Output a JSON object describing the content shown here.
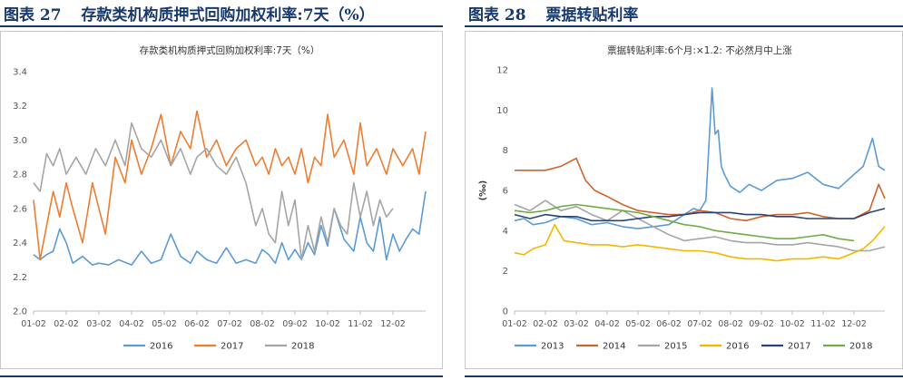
{
  "figures": [
    {
      "label": "图表 27",
      "caption": "存款类机构质押式回购加权利率:7天（%）"
    },
    {
      "label": "图表 28",
      "caption": "票据转贴利率"
    }
  ],
  "chart_data": [
    {
      "type": "line",
      "title": "存款类机构质押式回购加权利率:7天（%）",
      "xlabel": "",
      "ylabel": "",
      "ylim": [
        2.0,
        3.4
      ],
      "yticks": [
        "2.0",
        "2.2",
        "2.4",
        "2.6",
        "2.8",
        "3.0",
        "3.2",
        "3.4"
      ],
      "x_ticks": [
        "01-02",
        "02-02",
        "03-02",
        "04-02",
        "05-02",
        "06-02",
        "07-02",
        "08-02",
        "09-02",
        "10-02",
        "11-02",
        "12-02"
      ],
      "xlim": [
        0,
        12
      ],
      "grid": false,
      "legend": "bottom",
      "series": [
        {
          "name": "2016",
          "color": "#5b9bd5",
          "x": [
            0,
            0.2,
            0.4,
            0.6,
            0.8,
            1,
            1.2,
            1.5,
            1.8,
            2,
            2.3,
            2.6,
            3,
            3.3,
            3.6,
            3.9,
            4.2,
            4.5,
            4.8,
            5,
            5.3,
            5.6,
            5.9,
            6.2,
            6.5,
            6.8,
            7,
            7.2,
            7.4,
            7.6,
            7.8,
            8,
            8.2,
            8.4,
            8.6,
            8.8,
            9,
            9.2,
            9.5,
            9.8,
            10,
            10.2,
            10.4,
            10.6,
            10.8,
            11,
            11.2,
            11.4,
            11.6,
            11.8,
            12
          ],
          "y": [
            2.33,
            2.3,
            2.33,
            2.35,
            2.48,
            2.4,
            2.28,
            2.32,
            2.27,
            2.28,
            2.27,
            2.3,
            2.27,
            2.35,
            2.28,
            2.3,
            2.45,
            2.32,
            2.28,
            2.35,
            2.3,
            2.28,
            2.37,
            2.28,
            2.3,
            2.28,
            2.36,
            2.33,
            2.28,
            2.4,
            2.3,
            2.36,
            2.3,
            2.4,
            2.33,
            2.5,
            2.38,
            2.6,
            2.42,
            2.35,
            2.55,
            2.4,
            2.35,
            2.55,
            2.3,
            2.45,
            2.35,
            2.42,
            2.48,
            2.45,
            2.7
          ]
        },
        {
          "name": "2017",
          "color": "#ed7d31",
          "x": [
            0,
            0.2,
            0.4,
            0.6,
            0.8,
            1,
            1.2,
            1.5,
            1.8,
            2,
            2.2,
            2.5,
            2.8,
            3,
            3.3,
            3.6,
            3.9,
            4.2,
            4.5,
            4.8,
            5,
            5.3,
            5.6,
            5.9,
            6.2,
            6.5,
            6.8,
            7,
            7.2,
            7.4,
            7.6,
            7.8,
            8,
            8.2,
            8.4,
            8.6,
            8.8,
            9,
            9.2,
            9.5,
            9.8,
            10,
            10.2,
            10.5,
            10.8,
            11,
            11.3,
            11.6,
            11.8,
            12
          ],
          "y": [
            2.65,
            2.3,
            2.5,
            2.7,
            2.55,
            2.75,
            2.6,
            2.4,
            2.75,
            2.6,
            2.45,
            2.9,
            2.75,
            3.0,
            2.8,
            2.95,
            3.15,
            2.85,
            3.05,
            2.95,
            3.17,
            2.9,
            3.0,
            2.85,
            2.95,
            3.0,
            2.85,
            2.9,
            2.8,
            2.95,
            2.85,
            2.9,
            2.8,
            2.95,
            2.75,
            2.9,
            2.85,
            3.15,
            2.9,
            3.0,
            2.8,
            3.1,
            2.85,
            2.95,
            2.8,
            2.95,
            2.85,
            2.95,
            2.8,
            3.05
          ]
        },
        {
          "name": "2018",
          "color": "#a5a5a5",
          "x": [
            0,
            0.2,
            0.4,
            0.6,
            0.8,
            1,
            1.3,
            1.6,
            1.9,
            2.2,
            2.5,
            2.8,
            3,
            3.3,
            3.6,
            3.9,
            4.2,
            4.5,
            4.8,
            5,
            5.3,
            5.6,
            5.9,
            6.2,
            6.5,
            6.8,
            7,
            7.2,
            7.4,
            7.6,
            7.8,
            8,
            8.2,
            8.4,
            8.6,
            8.8,
            9,
            9.2,
            9.4,
            9.6,
            9.8,
            10,
            10.2,
            10.4,
            10.6,
            10.8,
            11
          ],
          "y": [
            2.75,
            2.7,
            2.92,
            2.85,
            2.95,
            2.8,
            2.9,
            2.8,
            2.95,
            2.85,
            3.0,
            2.85,
            3.1,
            2.95,
            2.9,
            3.0,
            2.85,
            2.95,
            2.8,
            2.9,
            2.95,
            2.85,
            2.8,
            2.9,
            2.75,
            2.5,
            2.6,
            2.45,
            2.4,
            2.7,
            2.5,
            2.65,
            2.3,
            2.5,
            2.35,
            2.55,
            2.4,
            2.6,
            2.5,
            2.45,
            2.75,
            2.55,
            2.7,
            2.5,
            2.65,
            2.55,
            2.6
          ]
        }
      ]
    },
    {
      "type": "line",
      "title": "票据转贴利率:6个月:×1.2: 不必然月中上涨",
      "xlabel": "",
      "ylabel": "(‰)",
      "ylim": [
        0,
        12
      ],
      "yticks": [
        "0",
        "2",
        "4",
        "6",
        "8",
        "10",
        "12"
      ],
      "x_ticks": [
        "01-02",
        "02-02",
        "03-02",
        "04-02",
        "05-02",
        "06-02",
        "07-02",
        "08-02",
        "09-02",
        "10-02",
        "11-02",
        "12-02"
      ],
      "xlim": [
        0,
        12
      ],
      "grid": false,
      "legend": "bottom",
      "series": [
        {
          "name": "2013",
          "color": "#5b9bd5",
          "x": [
            0,
            0.3,
            0.6,
            1,
            1.5,
            2,
            2.5,
            3,
            3.5,
            4,
            4.5,
            5,
            5.5,
            5.8,
            6,
            6.2,
            6.4,
            6.5,
            6.6,
            6.7,
            6.8,
            7,
            7.3,
            7.6,
            8,
            8.5,
            9,
            9.5,
            10,
            10.5,
            11,
            11.3,
            11.6,
            11.8,
            12
          ],
          "y": [
            4.5,
            4.6,
            4.3,
            4.4,
            4.7,
            4.6,
            4.3,
            4.4,
            4.2,
            4.1,
            4.2,
            4.3,
            4.8,
            5.1,
            5.0,
            5.5,
            11.1,
            8.8,
            9.0,
            7.2,
            6.8,
            6.2,
            5.9,
            6.3,
            6.0,
            6.5,
            6.6,
            6.9,
            6.3,
            6.1,
            6.8,
            7.2,
            8.6,
            7.2,
            7.0
          ]
        },
        {
          "name": "2014",
          "color": "#d0632b",
          "x": [
            0,
            0.5,
            1,
            1.5,
            2,
            2.3,
            2.6,
            3,
            3.5,
            4,
            4.5,
            5,
            5.5,
            6,
            6.5,
            7,
            7.5,
            8,
            8.5,
            9,
            9.5,
            10,
            10.5,
            11,
            11.5,
            11.8,
            12
          ],
          "y": [
            7.0,
            7.0,
            7.0,
            7.2,
            7.6,
            6.5,
            6.0,
            5.7,
            5.3,
            5.0,
            4.9,
            4.8,
            4.8,
            5.0,
            4.9,
            4.6,
            4.5,
            4.7,
            4.8,
            4.8,
            4.9,
            4.7,
            4.6,
            4.6,
            5.0,
            6.3,
            5.6
          ]
        },
        {
          "name": "2015",
          "color": "#a5a5a5",
          "x": [
            0,
            0.5,
            1,
            1.5,
            2,
            2.5,
            3,
            3.5,
            4,
            4.5,
            5,
            5.5,
            6,
            6.5,
            7,
            7.5,
            8,
            8.5,
            9,
            9.5,
            10,
            10.5,
            11,
            11.5,
            12
          ],
          "y": [
            5.3,
            5.0,
            5.5,
            5.0,
            5.2,
            4.8,
            4.5,
            5.0,
            4.6,
            4.2,
            3.8,
            3.5,
            3.6,
            3.7,
            3.5,
            3.4,
            3.4,
            3.3,
            3.3,
            3.4,
            3.3,
            3.2,
            3.0,
            3.0,
            3.2
          ]
        },
        {
          "name": "2016",
          "color": "#f2b800",
          "x": [
            0,
            0.3,
            0.6,
            1,
            1.3,
            1.6,
            2,
            2.5,
            3,
            3.5,
            4,
            4.5,
            5,
            5.5,
            6,
            6.5,
            7,
            7.5,
            8,
            8.5,
            9,
            9.5,
            10,
            10.5,
            11,
            11.3,
            11.6,
            12
          ],
          "y": [
            2.9,
            2.8,
            3.1,
            3.3,
            4.3,
            3.5,
            3.4,
            3.3,
            3.3,
            3.2,
            3.3,
            3.2,
            3.1,
            3.0,
            3.0,
            2.9,
            2.7,
            2.6,
            2.6,
            2.5,
            2.6,
            2.6,
            2.7,
            2.6,
            2.9,
            3.1,
            3.5,
            4.2
          ]
        },
        {
          "name": "2017",
          "color": "#264478",
          "x": [
            0,
            0.5,
            1,
            1.5,
            2,
            2.5,
            3,
            3.5,
            4,
            4.5,
            5,
            5.5,
            6,
            6.5,
            7,
            7.5,
            8,
            8.5,
            9,
            9.5,
            10,
            10.5,
            11,
            11.5,
            12
          ],
          "y": [
            4.8,
            4.6,
            4.8,
            4.7,
            4.7,
            4.5,
            4.5,
            4.5,
            4.6,
            4.7,
            4.7,
            4.8,
            4.9,
            4.9,
            4.9,
            4.8,
            4.8,
            4.7,
            4.7,
            4.6,
            4.6,
            4.6,
            4.6,
            4.9,
            5.1
          ]
        },
        {
          "name": "2018",
          "color": "#70ad47",
          "x": [
            0,
            0.5,
            1,
            1.5,
            2,
            2.5,
            3,
            3.5,
            4,
            4.5,
            5,
            5.5,
            6,
            6.5,
            7,
            7.5,
            8,
            8.5,
            9,
            9.5,
            10,
            10.5,
            11
          ],
          "y": [
            5.0,
            4.9,
            5.0,
            5.2,
            5.3,
            5.2,
            5.1,
            5.0,
            4.9,
            4.7,
            4.5,
            4.3,
            4.2,
            4.0,
            3.9,
            3.8,
            3.7,
            3.6,
            3.6,
            3.7,
            3.8,
            3.6,
            3.5
          ]
        }
      ]
    }
  ]
}
